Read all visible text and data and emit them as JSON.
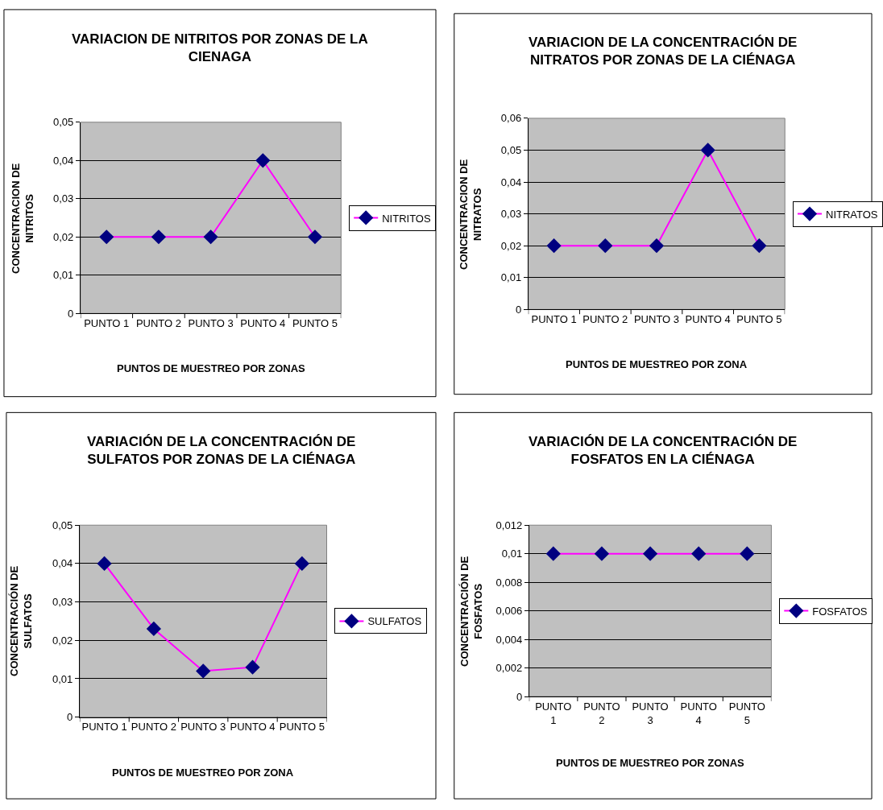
{
  "chart_data": [
    {
      "type": "line",
      "title": "VARIACION DE NITRITOS POR ZONAS DE LA\nCIENAGA",
      "xlabel": "PUNTOS DE MUESTREO POR ZONAS",
      "ylabel": "CONCENTRACION DE\nNITRITOS",
      "categories": [
        "PUNTO 1",
        "PUNTO 2",
        "PUNTO 3",
        "PUNTO 4",
        "PUNTO 5"
      ],
      "series": [
        {
          "name": "NITRITOS",
          "color": "#ff00ff",
          "values": [
            0.02,
            0.02,
            0.02,
            0.04,
            0.02
          ]
        }
      ],
      "ylim": [
        0,
        0.05
      ],
      "yticks": [
        0,
        {
          "value": 0.01,
          "label": "0,01"
        },
        {
          "value": 0.02,
          "label": "0,02"
        },
        {
          "value": 0.03,
          "label": "0,03"
        },
        {
          "value": 0.04,
          "label": "0,04"
        },
        {
          "value": 0.05,
          "label": "0,05"
        }
      ],
      "grid": "y",
      "legend": "right",
      "marker": "diamond"
    },
    {
      "type": "line",
      "title": "VARIACION DE LA CONCENTRACIÓN DE\nNITRATOS POR ZONAS DE LA CIÉNAGA",
      "xlabel": "PUNTOS DE MUESTREO POR ZONA",
      "ylabel": "CONCENTRACION DE\nNITRATOS",
      "categories": [
        "PUNTO 1",
        "PUNTO 2",
        "PUNTO 3",
        "PUNTO 4",
        "PUNTO 5"
      ],
      "series": [
        {
          "name": "NITRATOS",
          "color": "#ff00ff",
          "values": [
            0.02,
            0.02,
            0.02,
            0.05,
            0.02
          ]
        }
      ],
      "ylim": [
        0,
        0.06
      ],
      "yticks": [
        0,
        {
          "value": 0.01,
          "label": "0,01"
        },
        {
          "value": 0.02,
          "label": "0,02"
        },
        {
          "value": 0.03,
          "label": "0,03"
        },
        {
          "value": 0.04,
          "label": "0,04"
        },
        {
          "value": 0.05,
          "label": "0,05"
        },
        {
          "value": 0.06,
          "label": "0,06"
        }
      ],
      "grid": "y",
      "legend": "right",
      "marker": "diamond"
    },
    {
      "type": "line",
      "title": "VARIACIÓN DE LA CONCENTRACIÓN DE\nSULFATOS POR ZONAS DE LA CIÉNAGA",
      "xlabel": "PUNTOS DE MUESTREO POR ZONA",
      "ylabel": "CONCENTRACIÓN DE\nSULFATOS",
      "categories": [
        "PUNTO 1",
        "PUNTO 2",
        "PUNTO 3",
        "PUNTO 4",
        "PUNTO 5"
      ],
      "series": [
        {
          "name": "SULFATOS",
          "color": "#ff00ff",
          "values": [
            0.04,
            0.023,
            0.012,
            0.013,
            0.04
          ]
        }
      ],
      "ylim": [
        0,
        0.05
      ],
      "yticks": [
        0,
        {
          "value": 0.01,
          "label": "0,01"
        },
        {
          "value": 0.02,
          "label": "0,02"
        },
        {
          "value": 0.03,
          "label": "0,03"
        },
        {
          "value": 0.04,
          "label": "0,04"
        },
        {
          "value": 0.05,
          "label": "0,05"
        }
      ],
      "grid": "y",
      "legend": "right",
      "marker": "diamond"
    },
    {
      "type": "line",
      "title": "VARIACIÓN DE LA CONCENTRACIÓN DE\nFOSFATOS EN LA CIÉNAGA",
      "xlabel": "PUNTOS DE MUESTREO POR ZONAS",
      "ylabel": "CONCENTRACIÓN DE\nFOSFATOS",
      "categories": [
        "PUNTO\n1",
        "PUNTO\n2",
        "PUNTO\n3",
        "PUNTO\n4",
        "PUNTO\n5"
      ],
      "series": [
        {
          "name": "FOSFATOS",
          "color": "#ff00ff",
          "values": [
            0.01,
            0.01,
            0.01,
            0.01,
            0.01
          ]
        }
      ],
      "ylim": [
        0,
        0.012
      ],
      "yticks": [
        0,
        {
          "value": 0.002,
          "label": "0,002"
        },
        {
          "value": 0.004,
          "label": "0,004"
        },
        {
          "value": 0.006,
          "label": "0,006"
        },
        {
          "value": 0.008,
          "label": "0,008"
        },
        {
          "value": 0.01,
          "label": "0,01"
        },
        {
          "value": 0.012,
          "label": "0,012"
        }
      ],
      "grid": "y",
      "legend": "right",
      "marker": "diamond"
    }
  ]
}
